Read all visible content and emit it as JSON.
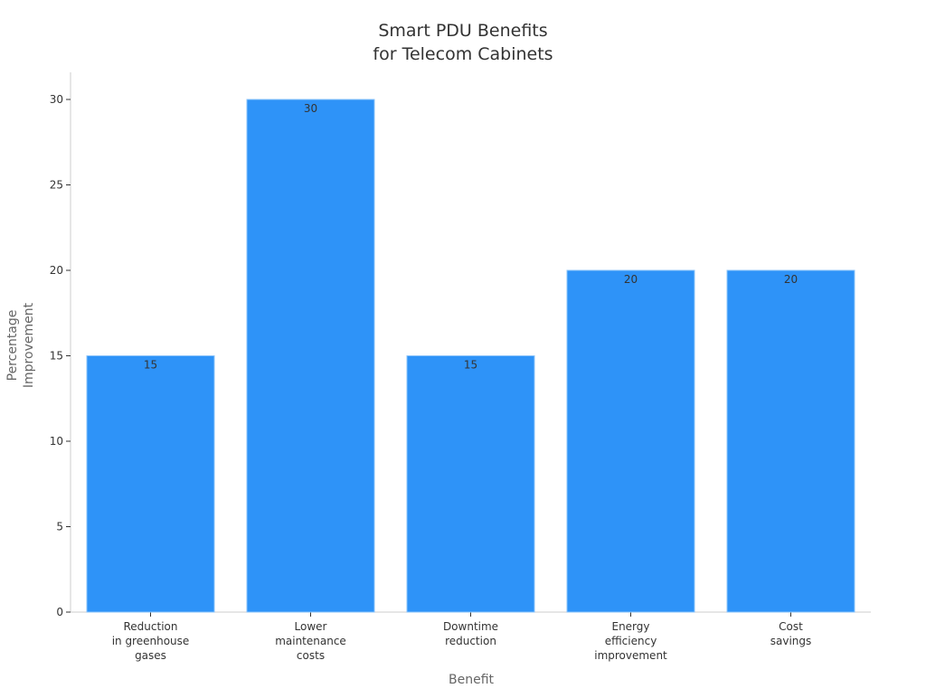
{
  "chart_data": {
    "type": "bar",
    "title": [
      "Smart PDU Benefits",
      "for Telecom Cabinets"
    ],
    "xlabel": "Benefit",
    "ylabel": [
      "Percentage",
      "Improvement"
    ],
    "categories": [
      [
        "Reduction",
        "in greenhouse",
        "gases"
      ],
      [
        "Lower",
        "maintenance",
        "costs"
      ],
      [
        "Downtime",
        "reduction"
      ],
      [
        "Energy",
        "efficiency",
        "improvement"
      ],
      [
        "Cost",
        "savings"
      ]
    ],
    "values": [
      15,
      30,
      15,
      20,
      20
    ],
    "data_labels": [
      "15",
      "30",
      "15",
      "20",
      "20"
    ],
    "ylim": [
      0,
      30
    ],
    "yticks": [
      0,
      5,
      10,
      15,
      20,
      25,
      30
    ],
    "grid": false,
    "colors": {
      "bar": "#2E93F8",
      "bar_edge": "#8CC4FA",
      "axis": "#CCCCCC",
      "text": "#333333",
      "label": "#666666"
    }
  }
}
